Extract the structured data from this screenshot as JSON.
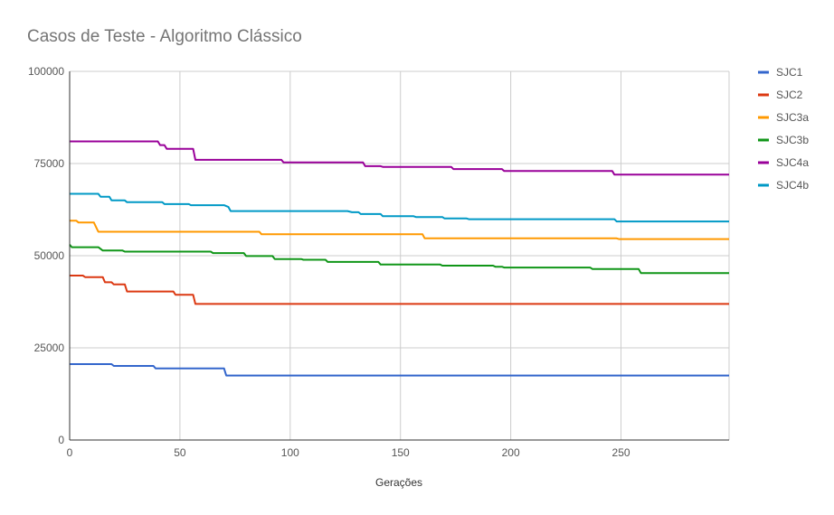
{
  "chart_data": {
    "type": "line",
    "title": "Casos de Teste - Algoritmo Clássico",
    "xlabel": "Gerações",
    "ylabel": "",
    "xlim": [
      0,
      299
    ],
    "ylim": [
      0,
      100000
    ],
    "xticks": [
      0,
      50,
      100,
      150,
      200,
      250
    ],
    "xtick_labels": [
      "0",
      "50",
      "100",
      "150",
      "200",
      "250"
    ],
    "yticks": [
      0,
      25000,
      50000,
      75000,
      100000
    ],
    "ytick_labels": [
      "0",
      "25000",
      "50000",
      "75000",
      "100000"
    ],
    "grid": true,
    "legend_position": "right",
    "series": [
      {
        "name": "SJC1",
        "color": "#3366cc",
        "points": [
          [
            0,
            20600
          ],
          [
            19,
            20600
          ],
          [
            20,
            20100
          ],
          [
            38,
            20100
          ],
          [
            39,
            19400
          ],
          [
            70,
            19400
          ],
          [
            71,
            17500
          ],
          [
            299,
            17500
          ]
        ]
      },
      {
        "name": "SJC2",
        "color": "#dc3912",
        "points": [
          [
            0,
            44600
          ],
          [
            6,
            44600
          ],
          [
            7,
            44200
          ],
          [
            15,
            44200
          ],
          [
            16,
            42800
          ],
          [
            19,
            42800
          ],
          [
            20,
            42200
          ],
          [
            25,
            42200
          ],
          [
            26,
            40300
          ],
          [
            47,
            40300
          ],
          [
            48,
            39400
          ],
          [
            56,
            39400
          ],
          [
            57,
            36900
          ],
          [
            299,
            36900
          ]
        ]
      },
      {
        "name": "SJC3a",
        "color": "#ff9900",
        "points": [
          [
            0,
            59500
          ],
          [
            3,
            59500
          ],
          [
            4,
            59000
          ],
          [
            11,
            59000
          ],
          [
            13,
            56500
          ],
          [
            86,
            56500
          ],
          [
            87,
            55800
          ],
          [
            160,
            55800
          ],
          [
            161,
            54700
          ],
          [
            248,
            54700
          ],
          [
            249,
            54500
          ],
          [
            299,
            54500
          ]
        ]
      },
      {
        "name": "SJC3b",
        "color": "#109618",
        "points": [
          [
            0,
            53000
          ],
          [
            1,
            52300
          ],
          [
            13,
            52300
          ],
          [
            15,
            51400
          ],
          [
            24,
            51400
          ],
          [
            25,
            51100
          ],
          [
            64,
            51100
          ],
          [
            65,
            50700
          ],
          [
            79,
            50700
          ],
          [
            80,
            49900
          ],
          [
            92,
            49900
          ],
          [
            93,
            49100
          ],
          [
            105,
            49100
          ],
          [
            106,
            48900
          ],
          [
            116,
            48900
          ],
          [
            117,
            48300
          ],
          [
            140,
            48300
          ],
          [
            141,
            47600
          ],
          [
            168,
            47600
          ],
          [
            169,
            47300
          ],
          [
            192,
            47300
          ],
          [
            193,
            47000
          ],
          [
            196,
            47000
          ],
          [
            197,
            46800
          ],
          [
            236,
            46800
          ],
          [
            237,
            46400
          ],
          [
            258,
            46400
          ],
          [
            259,
            45300
          ],
          [
            299,
            45300
          ]
        ]
      },
      {
        "name": "SJC4a",
        "color": "#990099",
        "points": [
          [
            0,
            81000
          ],
          [
            40,
            81000
          ],
          [
            41,
            80000
          ],
          [
            43,
            80000
          ],
          [
            44,
            79000
          ],
          [
            56,
            79000
          ],
          [
            57,
            76000
          ],
          [
            96,
            76000
          ],
          [
            97,
            75300
          ],
          [
            133,
            75300
          ],
          [
            134,
            74300
          ],
          [
            141,
            74300
          ],
          [
            142,
            74100
          ],
          [
            173,
            74100
          ],
          [
            174,
            73500
          ],
          [
            196,
            73500
          ],
          [
            197,
            73000
          ],
          [
            246,
            73000
          ],
          [
            247,
            72000
          ],
          [
            299,
            72000
          ]
        ]
      },
      {
        "name": "SJC4b",
        "color": "#0099c6",
        "points": [
          [
            0,
            66800
          ],
          [
            13,
            66800
          ],
          [
            14,
            66000
          ],
          [
            18,
            66000
          ],
          [
            19,
            65000
          ],
          [
            25,
            65000
          ],
          [
            26,
            64500
          ],
          [
            42,
            64500
          ],
          [
            43,
            64000
          ],
          [
            54,
            64000
          ],
          [
            55,
            63700
          ],
          [
            70,
            63700
          ],
          [
            72,
            63200
          ],
          [
            73,
            62100
          ],
          [
            126,
            62100
          ],
          [
            128,
            61800
          ],
          [
            131,
            61800
          ],
          [
            132,
            61300
          ],
          [
            141,
            61300
          ],
          [
            142,
            60700
          ],
          [
            156,
            60700
          ],
          [
            157,
            60500
          ],
          [
            169,
            60500
          ],
          [
            170,
            60100
          ],
          [
            180,
            60100
          ],
          [
            181,
            59900
          ],
          [
            247,
            59900
          ],
          [
            248,
            59300
          ],
          [
            299,
            59300
          ]
        ]
      }
    ]
  }
}
